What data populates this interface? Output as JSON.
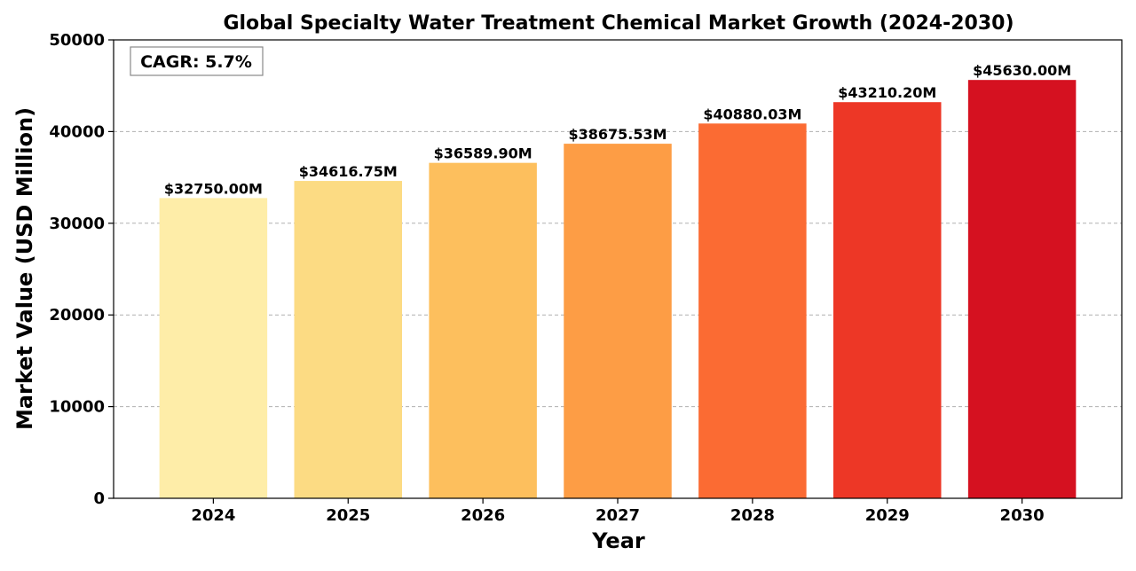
{
  "chart_data": {
    "type": "bar",
    "title": "Global Specialty Water Treatment Chemical Market Growth (2024-2030)",
    "xlabel": "Year",
    "ylabel": "Market Value (USD Million)",
    "categories": [
      "2024",
      "2025",
      "2026",
      "2027",
      "2028",
      "2029",
      "2030"
    ],
    "values": [
      32750.0,
      34616.75,
      36589.9,
      38675.53,
      40880.03,
      43210.2,
      45630.0
    ],
    "data_labels": [
      "$32750.00M",
      "$34616.75M",
      "$36589.90M",
      "$38675.53M",
      "$40880.03M",
      "$43210.20M",
      "$45630.00M"
    ],
    "colors": [
      "#feeda8",
      "#fcdb83",
      "#fdbf5d",
      "#fd9d45",
      "#fb6b33",
      "#ed3726",
      "#d51120"
    ],
    "ylim": [
      0,
      50000
    ],
    "yticks": [
      0,
      10000,
      20000,
      30000,
      40000,
      50000
    ],
    "grid": "y-dashed",
    "annotation": "CAGR: 5.7%",
    "annotation_position": "top-left"
  }
}
